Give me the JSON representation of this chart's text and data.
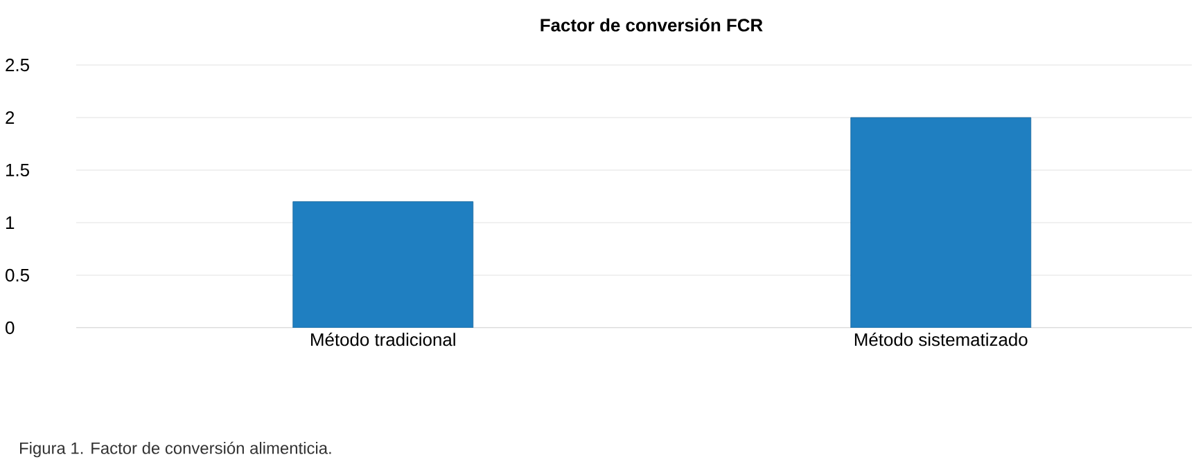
{
  "chart_data": {
    "type": "bar",
    "title": "Factor de conversión FCR",
    "categories": [
      "Método tradicional",
      "Método sistematizado"
    ],
    "values": [
      1.2,
      2.0
    ],
    "color": "#1f7fc1",
    "ylim": [
      0,
      2.5
    ],
    "yticks": [
      0,
      0.5,
      1,
      1.5,
      2,
      2.5
    ],
    "grid": "y",
    "annotations": [
      "Figura 1. Factor de conversión alimenticia."
    ]
  }
}
